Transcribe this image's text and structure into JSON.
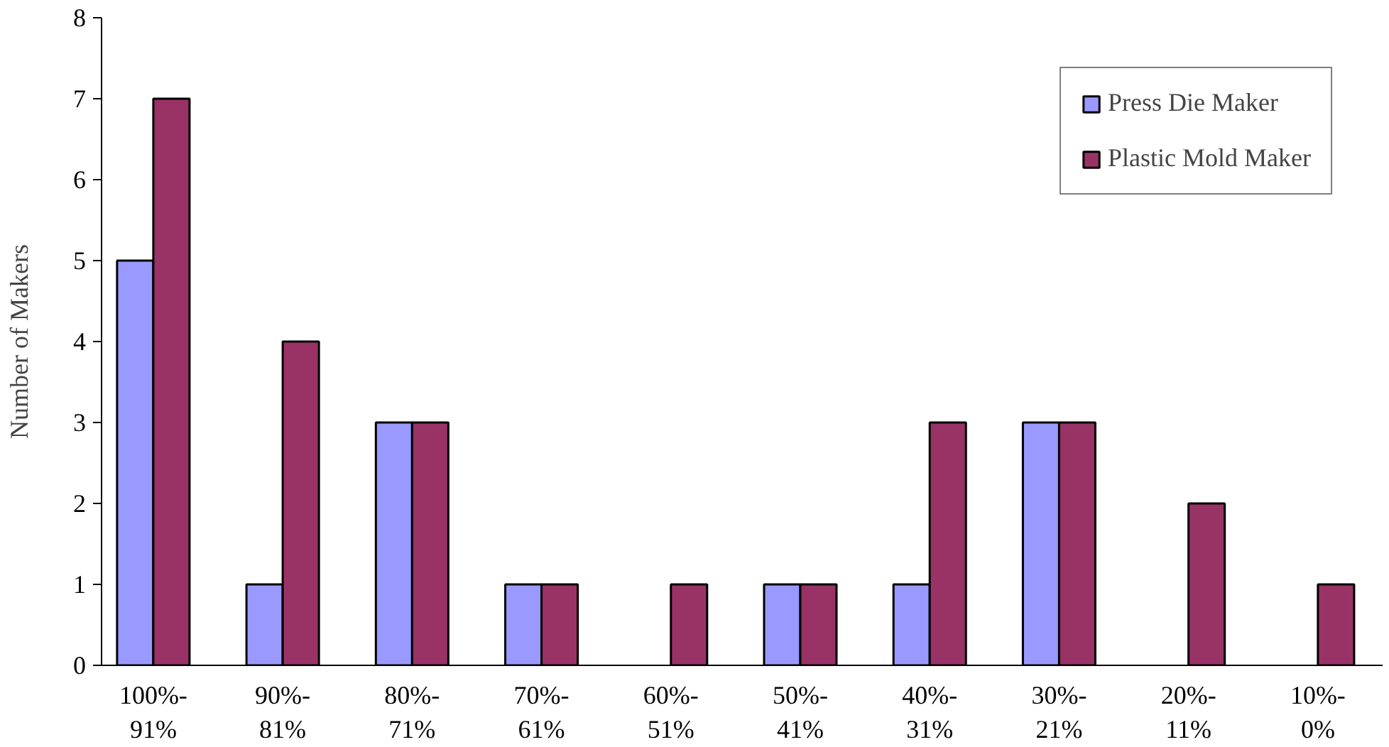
{
  "chart_data": {
    "type": "bar",
    "ylabel": "Number of Makers",
    "categories": [
      "100%-\n91%",
      "90%-\n81%",
      "80%-\n71%",
      "70%-\n61%",
      "60%-\n51%",
      "50%-\n41%",
      "40%-\n31%",
      "30%-\n21%",
      "20%-\n11%",
      "10%-\n0%"
    ],
    "series": [
      {
        "name": "Press Die Maker",
        "color": "#9999ff",
        "values": [
          5,
          1,
          3,
          1,
          null,
          1,
          1,
          3,
          null,
          null
        ]
      },
      {
        "name": "Plastic Mold Maker",
        "color": "#993366",
        "values": [
          7,
          4,
          3,
          1,
          1,
          1,
          3,
          3,
          2,
          1
        ]
      }
    ],
    "ylim": [
      0,
      8
    ],
    "yticks": [
      0,
      1,
      2,
      3,
      4,
      5,
      6,
      7,
      8
    ],
    "grid": false,
    "legend": "top right"
  }
}
